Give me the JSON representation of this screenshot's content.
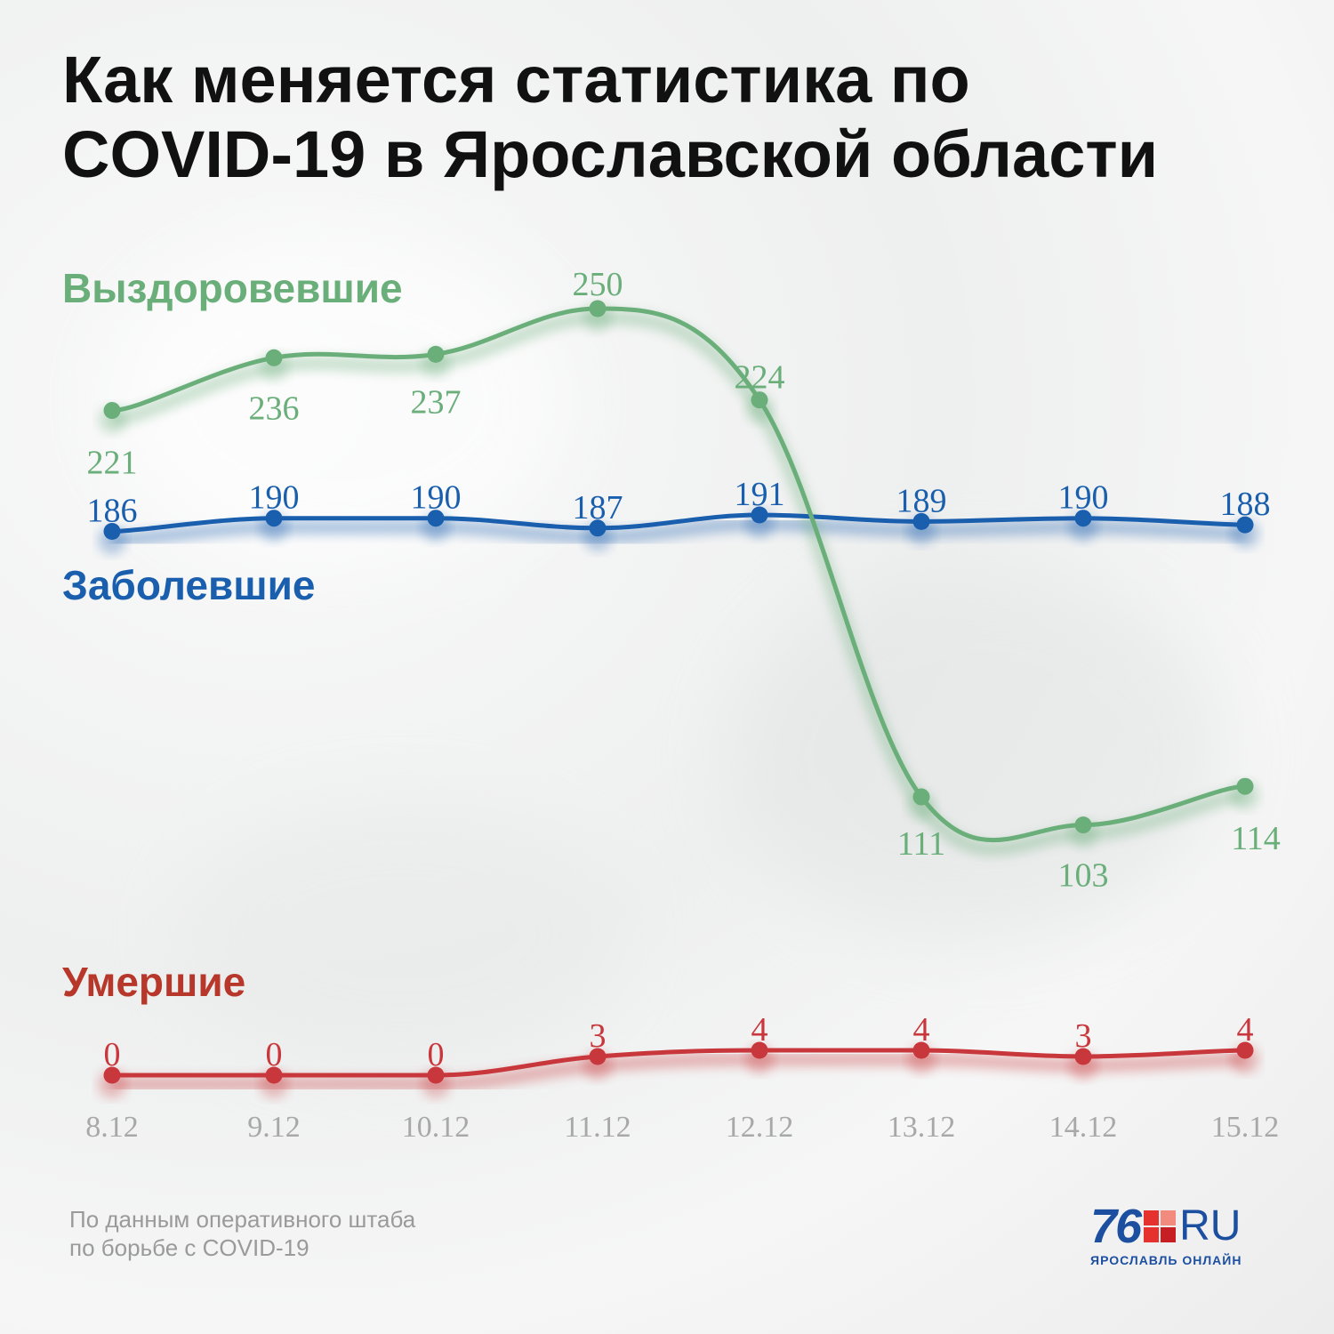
{
  "title_lines": [
    "Как меняется статистика по",
    "COVID-19 в Ярославской области"
  ],
  "source_lines": [
    "По данным оперативного штаба",
    "по борьбе с COVID-19"
  ],
  "logo": {
    "number": "76",
    "suffix": "RU",
    "tagline": "ЯРОСЛАВЛЬ ОНЛАЙН"
  },
  "colors": {
    "recovered": "#6aae7a",
    "cases": "#1a5fae",
    "deaths": "#c8373b",
    "deaths_label": "#b7372a",
    "axis_labels": "#a8a8a8",
    "logo_blue": "#1c4fa0",
    "logo_red": "#e6322e"
  },
  "chart_data": {
    "type": "line",
    "title": "Как меняется статистика по COVID-19 в Ярославской области",
    "categories": [
      "8.12",
      "9.12",
      "10.12",
      "11.12",
      "12.12",
      "13.12",
      "14.12",
      "15.12"
    ],
    "series": [
      {
        "name": "Выздоровевшие",
        "values": [
          221,
          236,
          237,
          250,
          224,
          111,
          103,
          114
        ]
      },
      {
        "name": "Заболевшие",
        "values": [
          186,
          190,
          190,
          187,
          191,
          189,
          190,
          188
        ]
      },
      {
        "name": "Умершие",
        "values": [
          0,
          0,
          0,
          3,
          4,
          4,
          3,
          4
        ]
      }
    ],
    "grid": false,
    "legend": "inline labels"
  }
}
